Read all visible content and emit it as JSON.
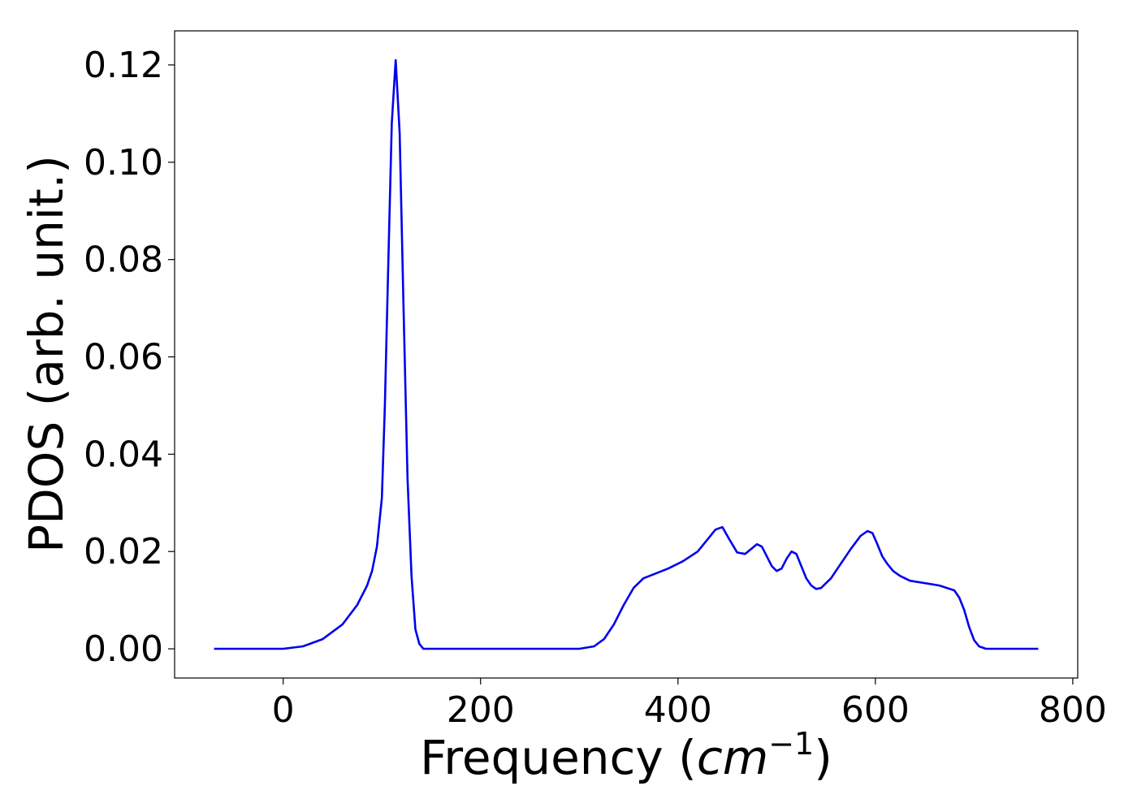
{
  "chart_data": {
    "type": "line",
    "title": "",
    "xlabel": "Frequency",
    "xlabel_unit": "cm",
    "xlabel_unit_sup": "−1",
    "ylabel": "PDOS (arb. unit.)",
    "xlim": [
      -110,
      805
    ],
    "ylim": [
      -0.006,
      0.127
    ],
    "x_ticks": [
      0,
      200,
      400,
      600,
      800
    ],
    "x_tick_labels": [
      "0",
      "200",
      "400",
      "600",
      "800"
    ],
    "y_ticks": [
      0.0,
      0.02,
      0.04,
      0.06,
      0.08,
      0.1,
      0.12
    ],
    "y_tick_labels": [
      "0.00",
      "0.02",
      "0.04",
      "0.06",
      "0.08",
      "0.10",
      "0.12"
    ],
    "grid": false,
    "legend": "none",
    "series": [
      {
        "color": "#0000ee",
        "x": [
          -70,
          0,
          20,
          40,
          60,
          75,
          85,
          90,
          95,
          100,
          103,
          106,
          110,
          114,
          118,
          122,
          126,
          130,
          134,
          138,
          142,
          150,
          200,
          250,
          300,
          315,
          325,
          335,
          345,
          355,
          365,
          375,
          390,
          405,
          420,
          430,
          438,
          445,
          452,
          460,
          468,
          474,
          480,
          485,
          490,
          495,
          500,
          505,
          510,
          515,
          520,
          525,
          530,
          535,
          540,
          545,
          555,
          565,
          575,
          585,
          592,
          597,
          602,
          607,
          612,
          618,
          625,
          635,
          650,
          665,
          680,
          685,
          690,
          695,
          700,
          705,
          712,
          720,
          765
        ],
        "y": [
          0.0,
          0.0,
          0.0005,
          0.002,
          0.005,
          0.009,
          0.013,
          0.016,
          0.021,
          0.031,
          0.05,
          0.075,
          0.108,
          0.121,
          0.106,
          0.07,
          0.035,
          0.015,
          0.004,
          0.001,
          0.0,
          0.0,
          0.0,
          0.0,
          0.0,
          0.0005,
          0.002,
          0.005,
          0.009,
          0.0125,
          0.0145,
          0.0153,
          0.0165,
          0.018,
          0.02,
          0.0225,
          0.0245,
          0.025,
          0.0225,
          0.0198,
          0.0195,
          0.0205,
          0.0215,
          0.021,
          0.019,
          0.017,
          0.016,
          0.0165,
          0.0185,
          0.02,
          0.0195,
          0.017,
          0.0145,
          0.013,
          0.0123,
          0.0125,
          0.0145,
          0.0175,
          0.0205,
          0.0232,
          0.0242,
          0.0238,
          0.0215,
          0.019,
          0.0175,
          0.016,
          0.015,
          0.014,
          0.0135,
          0.013,
          0.012,
          0.0105,
          0.008,
          0.0045,
          0.0018,
          0.0005,
          0.0,
          0.0,
          0.0
        ]
      }
    ]
  }
}
